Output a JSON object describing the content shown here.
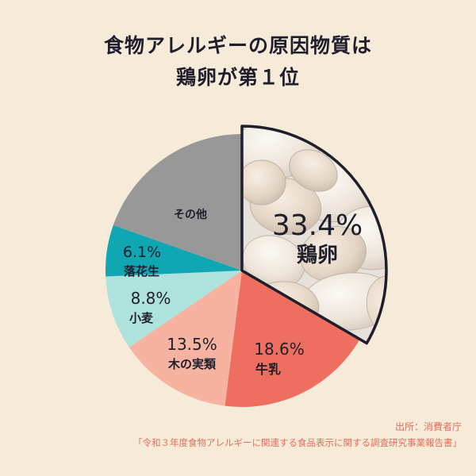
{
  "title_line1": "食物アレルギーの原因物質は",
  "title_line2": "鶏卵が第１位",
  "source_label": "出所：消費者庁",
  "source_report": "「令和３年度食物アレルギーに関連する食品表示に関する調査研究事業報告書」",
  "chart_data": {
    "type": "pie",
    "title": "食物アレルギーの原因物質は鶏卵が第１位",
    "start": "12 o'clock, clockwise",
    "slices": [
      {
        "name": "鶏卵",
        "value": 33.4,
        "label": "33.4%",
        "color": "#d9d2c8",
        "highlighted": true
      },
      {
        "name": "牛乳",
        "value": 18.6,
        "label": "18.6%",
        "color": "#ee6f60"
      },
      {
        "name": "木の実類",
        "value": 13.5,
        "label": "13.5%",
        "color": "#f6b3a1"
      },
      {
        "name": "小麦",
        "value": 8.8,
        "label": "8.8%",
        "color": "#aee2dc"
      },
      {
        "name": "落花生",
        "value": 6.1,
        "label": "6.1%",
        "color": "#10a7b3"
      },
      {
        "name": "その他",
        "value": 19.6,
        "label": "",
        "color": "#989898"
      }
    ]
  }
}
